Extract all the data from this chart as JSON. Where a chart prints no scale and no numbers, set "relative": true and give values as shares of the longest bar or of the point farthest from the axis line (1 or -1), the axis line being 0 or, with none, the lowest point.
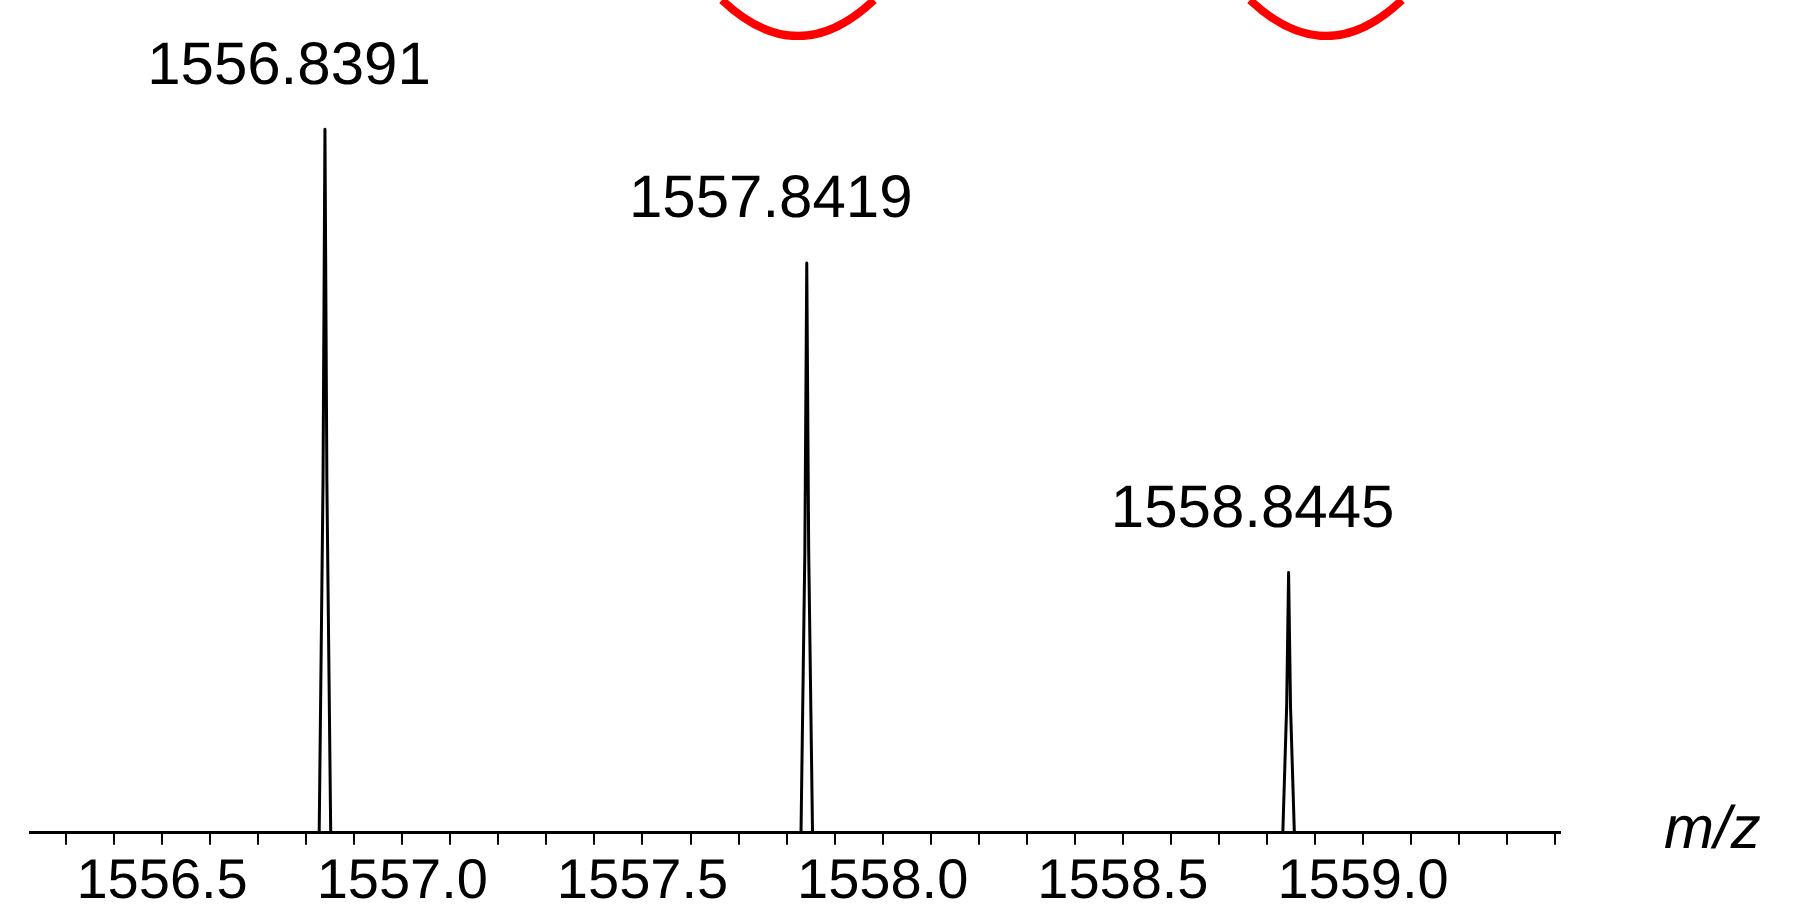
{
  "chart_data": {
    "type": "line",
    "relative": true,
    "xlabel": "m/z",
    "marker": "none",
    "color": "#000000",
    "x": [
      1556.225,
      1556.827,
      1556.835,
      1556.839,
      1556.843,
      1556.851,
      1557.83,
      1557.838,
      1557.842,
      1557.846,
      1557.854,
      1558.833,
      1558.841,
      1558.845,
      1558.849,
      1558.857,
      1559.41
    ],
    "values": [
      0,
      0,
      0.5,
      1,
      0.5,
      0,
      0,
      0.4,
      0.81,
      0.4,
      0,
      0,
      0.18,
      0.37,
      0.18,
      0,
      0
    ],
    "xlim": [
      1556.225,
      1559.41
    ],
    "xticks": [
      {
        "value": 1556.3,
        "label": null
      },
      {
        "value": 1556.4,
        "label": null
      },
      {
        "value": 1556.5,
        "label": "1556.5"
      },
      {
        "value": 1556.6,
        "label": null
      },
      {
        "value": 1556.7,
        "label": null
      },
      {
        "value": 1556.8,
        "label": null
      },
      {
        "value": 1556.9,
        "label": null
      },
      {
        "value": 1557.0,
        "label": "1557.0"
      },
      {
        "value": 1557.1,
        "label": null
      },
      {
        "value": 1557.2,
        "label": null
      },
      {
        "value": 1557.3,
        "label": null
      },
      {
        "value": 1557.4,
        "label": null
      },
      {
        "value": 1557.5,
        "label": "1557.5"
      },
      {
        "value": 1557.6,
        "label": null
      },
      {
        "value": 1557.7,
        "label": null
      },
      {
        "value": 1557.8,
        "label": null
      },
      {
        "value": 1557.9,
        "label": null
      },
      {
        "value": 1558.0,
        "label": "1558.0"
      },
      {
        "value": 1558.1,
        "label": null
      },
      {
        "value": 1558.2,
        "label": null
      },
      {
        "value": 1558.3,
        "label": null
      },
      {
        "value": 1558.4,
        "label": null
      },
      {
        "value": 1558.5,
        "label": "1558.5"
      },
      {
        "value": 1558.6,
        "label": null
      },
      {
        "value": 1558.7,
        "label": null
      },
      {
        "value": 1558.8,
        "label": null
      },
      {
        "value": 1558.9,
        "label": null
      },
      {
        "value": 1559.0,
        "label": "1559.0"
      },
      {
        "value": 1559.1,
        "label": null
      },
      {
        "value": 1559.2,
        "label": null
      },
      {
        "value": 1559.3,
        "label": null
      },
      {
        "value": 1559.4,
        "label": null
      }
    ],
    "annotations": [
      {
        "text": "1556.8391",
        "x": 1556.839,
        "y": 1
      },
      {
        "text": "1557.8419",
        "x": 1557.842,
        "y": 0.81
      },
      {
        "text": "1558.8445",
        "x": 1558.845,
        "y": 0.37
      }
    ]
  }
}
